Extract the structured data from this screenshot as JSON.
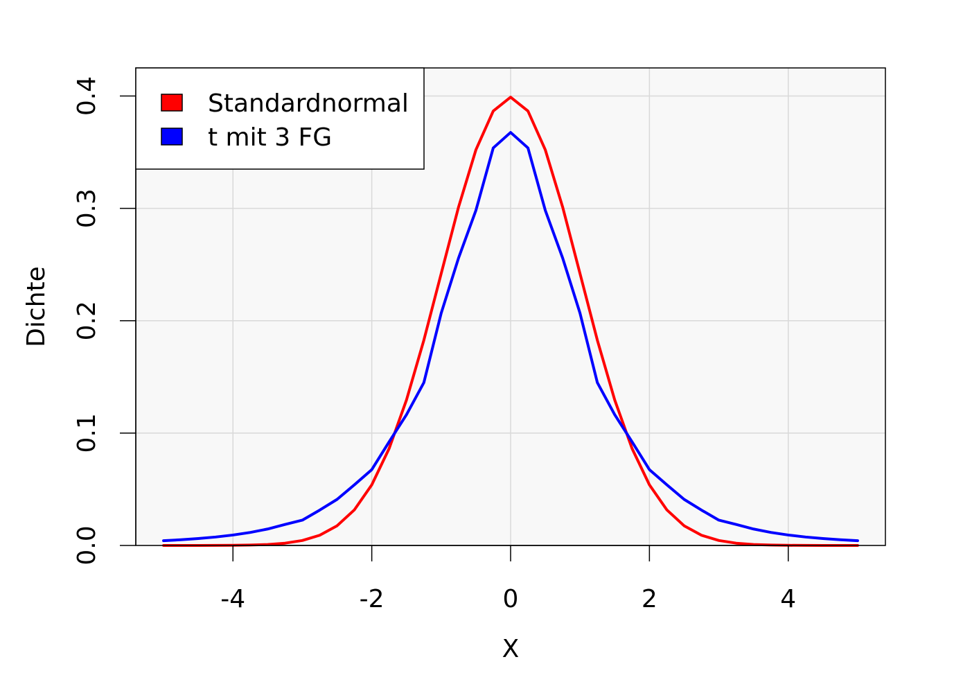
{
  "chart_data": {
    "type": "line",
    "xlabel": "X",
    "ylabel": "Dichte",
    "xlim": [
      -5.4,
      5.4
    ],
    "ylim": [
      0,
      0.425
    ],
    "x_ticks": [
      -4,
      -2,
      0,
      2,
      4
    ],
    "y_ticks": [
      0.0,
      0.1,
      0.2,
      0.3,
      0.4
    ],
    "x_tick_labels": [
      "-4",
      "-2",
      "0",
      "2",
      "4"
    ],
    "y_tick_labels": [
      "0.0",
      "0.1",
      "0.2",
      "0.3",
      "0.4"
    ],
    "grid": true,
    "legend_position": "top-left",
    "background_color": "#f8f8f8",
    "grid_color": "#d9d9d9",
    "x": [
      -5,
      -4.75,
      -4.5,
      -4.25,
      -4,
      -3.75,
      -3.5,
      -3.25,
      -3,
      -2.75,
      -2.5,
      -2.25,
      -2,
      -1.75,
      -1.5,
      -1.25,
      -1,
      -0.75,
      -0.5,
      -0.25,
      0,
      0.25,
      0.5,
      0.75,
      1,
      1.25,
      1.5,
      1.75,
      2,
      2.25,
      2.5,
      2.75,
      3,
      3.25,
      3.5,
      3.75,
      4,
      4.25,
      4.5,
      4.75,
      5
    ],
    "series": [
      {
        "name": "Standardnormal",
        "color": "#ff0000",
        "values": [
          1.5e-06,
          5e-06,
          1.6e-05,
          4.77e-05,
          0.0001338,
          0.0003526,
          0.0008727,
          0.002029,
          0.0044318,
          0.0090936,
          0.0175283,
          0.0317397,
          0.053991,
          0.0862773,
          0.1295176,
          0.1826491,
          0.2419707,
          0.3011374,
          0.3520653,
          0.3866681,
          0.3989423,
          0.3866681,
          0.3520653,
          0.3011374,
          0.2419707,
          0.1826491,
          0.1295176,
          0.0862773,
          0.053991,
          0.0317397,
          0.0175283,
          0.0090936,
          0.0044318,
          0.002029,
          0.0008727,
          0.0003526,
          0.0001338,
          4.77e-05,
          1.6e-05,
          5e-06,
          1.5e-06
        ]
      },
      {
        "name": "t mit 3 FG",
        "color": "#0000ff",
        "values": [
          0.00422,
          0.00507,
          0.00615,
          0.00752,
          0.00929,
          0.0116,
          0.01464,
          0.0187,
          0.02252,
          0.03148,
          0.04102,
          0.05402,
          0.0675,
          0.09224,
          0.1164,
          0.1449,
          0.2067,
          0.2558,
          0.2982,
          0.3538,
          0.3676,
          0.3538,
          0.2982,
          0.2558,
          0.2067,
          0.1449,
          0.1164,
          0.09224,
          0.0675,
          0.05402,
          0.04102,
          0.03148,
          0.02252,
          0.0187,
          0.01464,
          0.0116,
          0.00929,
          0.00752,
          0.00615,
          0.00507,
          0.00422
        ]
      }
    ]
  }
}
